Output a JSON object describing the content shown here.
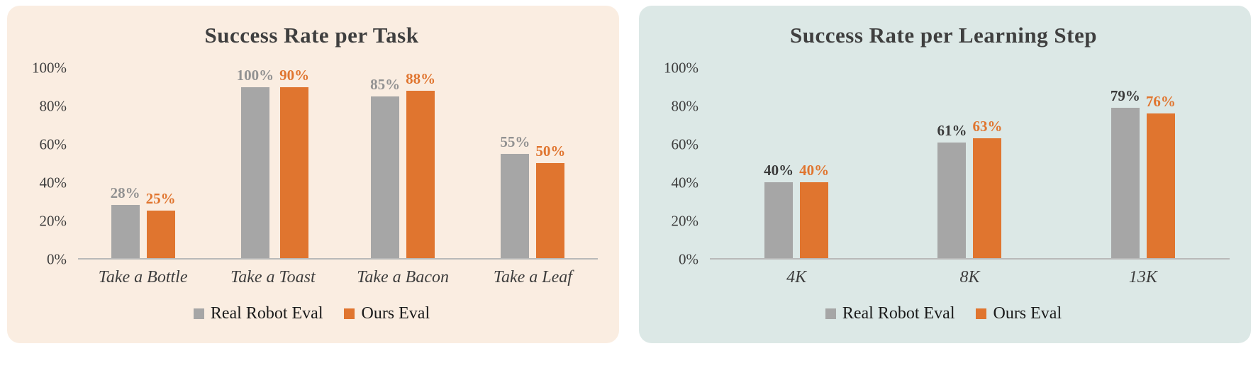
{
  "page": {
    "background": "#ffffff"
  },
  "panels": [
    {
      "name": "success-rate-per-task",
      "background": "#faede1"
    },
    {
      "name": "success-rate-per-learning-step",
      "background": "#dce8e6"
    }
  ],
  "chart_data": [
    {
      "type": "bar",
      "title": "Success Rate per Task",
      "title_color": "#3f3f3f",
      "xlabel": "",
      "ylabel": "",
      "categories": [
        "Take a Bottle",
        "Take a Toast",
        "Take a Bacon",
        "Take a Leaf"
      ],
      "series": [
        {
          "name": "Real Robot Eval",
          "color": "#a6a6a6",
          "label_color": "#929292",
          "values": [
            28,
            100,
            85,
            55
          ]
        },
        {
          "name": "Ours Eval",
          "color": "#e0752f",
          "label_color": "#e0752f",
          "values": [
            25,
            90,
            88,
            50
          ]
        }
      ],
      "value_suffix": "%",
      "ylim": [
        0,
        100
      ],
      "yticks": [
        0,
        20,
        40,
        60,
        80,
        100
      ],
      "ytick_labels": [
        "0%",
        "20%",
        "40%",
        "60%",
        "80%",
        "100%"
      ],
      "grid": false,
      "legend_position": "bottom"
    },
    {
      "type": "bar",
      "title": "Success Rate per Learning Step",
      "title_color": "#3f3f3f",
      "xlabel": "",
      "ylabel": "",
      "categories": [
        "4K",
        "8K",
        "13K"
      ],
      "series": [
        {
          "name": "Real Robot Eval",
          "color": "#a6a6a6",
          "label_color": "#3a3a3a",
          "values": [
            40,
            61,
            79
          ]
        },
        {
          "name": "Ours Eval",
          "color": "#e0752f",
          "label_color": "#e0752f",
          "values": [
            40,
            63,
            76
          ]
        }
      ],
      "value_suffix": "%",
      "ylim": [
        0,
        100
      ],
      "yticks": [
        0,
        20,
        40,
        60,
        80,
        100
      ],
      "ytick_labels": [
        "0%",
        "20%",
        "40%",
        "60%",
        "80%",
        "100%"
      ],
      "grid": false,
      "legend_position": "bottom"
    }
  ]
}
